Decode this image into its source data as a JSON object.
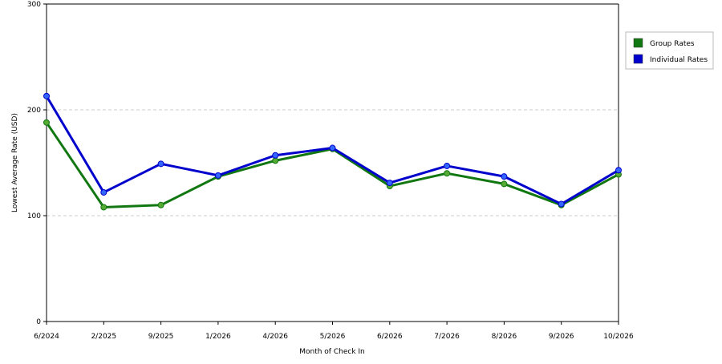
{
  "chart_data": {
    "type": "line",
    "title": "",
    "xlabel": "Month of Check In",
    "ylabel": "Lowest Average Rate (USD)",
    "categories": [
      "6/2024",
      "2/2025",
      "9/2025",
      "1/2026",
      "4/2026",
      "5/2026",
      "6/2026",
      "7/2026",
      "8/2026",
      "9/2026",
      "10/2026"
    ],
    "ylim": [
      0,
      300
    ],
    "yticks": [
      0,
      100,
      200,
      300
    ],
    "grid": "horizontal dashed",
    "legend_position": "right",
    "series": [
      {
        "name": "Group Rates",
        "color": "#117711",
        "marker_color": "#55aa33",
        "values": [
          188,
          108,
          110,
          137,
          152,
          163,
          128,
          140,
          130,
          110,
          139
        ]
      },
      {
        "name": "Individual Rates",
        "color": "#0000cc",
        "marker_color": "#3366ff",
        "values": [
          213,
          122,
          149,
          138,
          157,
          164,
          131,
          147,
          137,
          111,
          143
        ]
      }
    ]
  }
}
